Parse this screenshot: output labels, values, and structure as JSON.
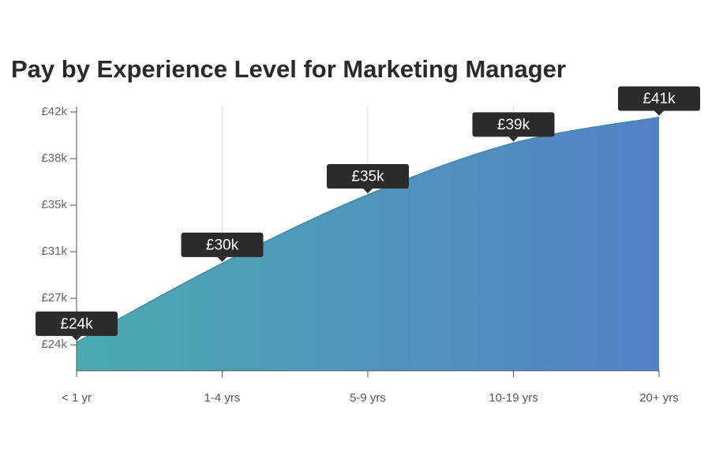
{
  "chart_data": {
    "type": "area",
    "title": "Pay by Experience Level for Marketing Manager",
    "categories": [
      "< 1 yr",
      "1-4 yrs",
      "5-9 yrs",
      "10-19 yrs",
      "20+ yrs"
    ],
    "values": [
      24.0,
      30.1,
      35.4,
      39.4,
      41.4
    ],
    "value_labels": [
      "£24k",
      "£30k",
      "£35k",
      "£39k",
      "£41k"
    ],
    "colors": [
      "#4aabb0",
      "#5580c8"
    ],
    "ylim": [
      21.8,
      41.8
    ],
    "yticks": [
      {
        "value": 23.8,
        "label": "£24k"
      },
      {
        "value": 27.4,
        "label": "£27k"
      },
      {
        "value": 31.0,
        "label": "£31k"
      },
      {
        "value": 34.6,
        "label": "£35k"
      },
      {
        "value": 38.2,
        "label": "£38k"
      },
      {
        "value": 41.8,
        "label": "£42k"
      }
    ],
    "grid": true
  }
}
